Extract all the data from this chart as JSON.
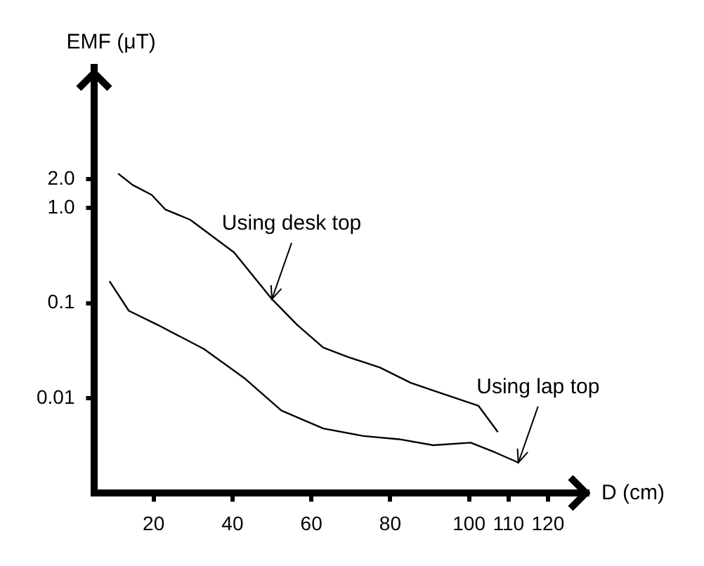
{
  "chart_data": {
    "type": "line",
    "xlabel": "D (cm)",
    "ylabel": "EMF (μT)",
    "log": "y",
    "grid": false,
    "legend": false,
    "marker": "none",
    "line_style": "solid",
    "xlim": [
      5,
      130
    ],
    "xticks": [
      20,
      40,
      60,
      80,
      100,
      110,
      120
    ],
    "ylim": [
      0.001,
      30
    ],
    "yticks": [
      0.01,
      0.1,
      {
        "value": 1,
        "label": "1.0"
      },
      {
        "value": 2,
        "label": "2.0"
      }
    ],
    "series": [
      {
        "color": "#000000",
        "x": [
          11,
          14.6,
          19.5,
          23,
          29.3,
          40.4,
          50,
          56.4,
          63,
          69.4,
          77.4,
          85.2,
          90.9,
          102.4,
          107.3
        ],
        "values": [
          2.3,
          1.75,
          1.37,
          0.96,
          0.75,
          0.34,
          0.11,
          0.059,
          0.034,
          0.027,
          0.021,
          0.0145,
          0.012,
          0.0083,
          0.0044
        ]
      },
      {
        "color": "#000000",
        "x": [
          8.8,
          13.7,
          21,
          32.7,
          43.2,
          52.4,
          63,
          73.2,
          82.2,
          90.9,
          100.4,
          106.5,
          112.5
        ],
        "values": [
          0.17,
          0.083,
          0.059,
          0.033,
          0.016,
          0.0074,
          0.0048,
          0.004,
          0.0037,
          0.0032,
          0.0034,
          0.0027,
          0.0021
        ]
      }
    ],
    "annotations": [
      {
        "text": "Using desk top",
        "x": 50,
        "y": 0.11
      },
      {
        "text": "Using lap top",
        "x": 112.5,
        "y": 0.0021
      }
    ]
  }
}
